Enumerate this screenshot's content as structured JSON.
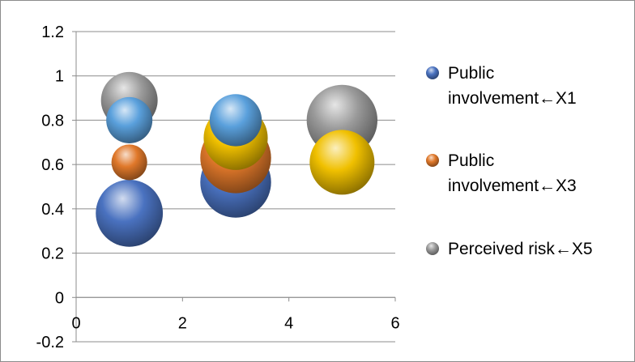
{
  "chart_data": {
    "type": "bubble",
    "xlim": [
      0,
      6
    ],
    "ylim": [
      -0.2,
      1.2
    ],
    "x_ticks": [
      "0",
      "2",
      "4",
      "6"
    ],
    "y_ticks": [
      "-0.2",
      "0",
      "0.2",
      "0.4",
      "0.6",
      "0.8",
      "1",
      "1.2"
    ],
    "grid": "horizontal",
    "legend_position": "right",
    "legend": [
      "Public involvement←X1",
      "Public involvement←X3",
      "Perceived risk←X5"
    ],
    "bubbles": [
      {
        "x": 1,
        "y": 0.89,
        "size": 0.76,
        "color": "#9a9a9a"
      },
      {
        "x": 1,
        "y": 0.38,
        "size": 0.9,
        "color": "#4a72c0"
      },
      {
        "x": 1,
        "y": 0.61,
        "size": 0.48,
        "color": "#e0782a"
      },
      {
        "x": 1,
        "y": 0.8,
        "size": 0.62,
        "color": "#5aa0dc"
      },
      {
        "x": 3,
        "y": 0.52,
        "size": 0.95,
        "color": "#4a72c0"
      },
      {
        "x": 3,
        "y": 0.63,
        "size": 0.95,
        "color": "#e0782a"
      },
      {
        "x": 3,
        "y": 0.72,
        "size": 0.86,
        "color": "#f0c000"
      },
      {
        "x": 3,
        "y": 0.8,
        "size": 0.7,
        "color": "#5aa0dc"
      },
      {
        "x": 5,
        "y": 0.8,
        "size": 0.95,
        "color": "#9a9a9a"
      },
      {
        "x": 5,
        "y": 0.61,
        "size": 0.87,
        "color": "#f0c000"
      }
    ],
    "legend_colors": [
      "#4a72c0",
      "#e0782a",
      "#9a9a9a"
    ]
  }
}
